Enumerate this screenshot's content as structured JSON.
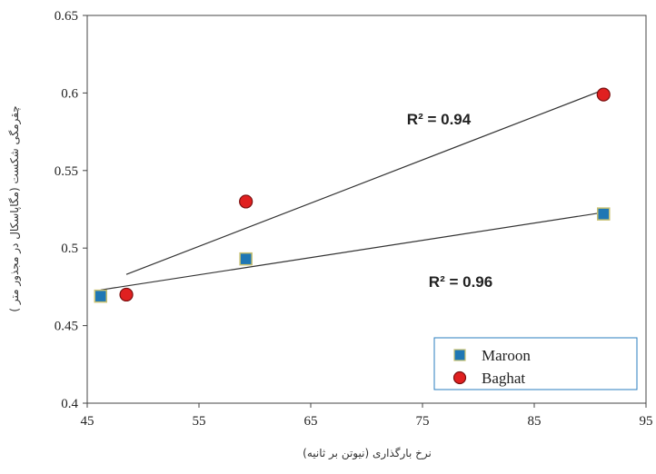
{
  "chart_data": {
    "type": "scatter",
    "xlabel": "نرخ بارگذاری (نیوتن بر ثانیه)",
    "ylabel": "چقرمگی شکست (مگاپاسکال در مجذور متر )",
    "xlim": [
      45,
      95
    ],
    "ylim": [
      0.4,
      0.65
    ],
    "x_ticks": [
      "45",
      "55",
      "65",
      "75",
      "85",
      "95"
    ],
    "y_ticks": [
      "0.4",
      "0.45",
      "0.5",
      "0.55",
      "0.6",
      "0.65"
    ],
    "grid": false,
    "legend_position": "bottom-right",
    "series": [
      {
        "name": "Maroon",
        "marker": "square",
        "color": "#1f77b4",
        "x": [
          46.2,
          59.2,
          91.2
        ],
        "y": [
          0.469,
          0.493,
          0.522
        ],
        "trendline": {
          "x": [
            46.2,
            91.2
          ],
          "y": [
            0.473,
            0.523
          ]
        },
        "r2_label": "R² = 0.96"
      },
      {
        "name": "Baghat",
        "marker": "circle",
        "color": "#e02020",
        "x": [
          48.5,
          59.2,
          91.2
        ],
        "y": [
          0.47,
          0.53,
          0.599
        ],
        "trendline": {
          "x": [
            48.5,
            91.2
          ],
          "y": [
            0.483,
            0.602
          ]
        },
        "r2_label": "R² = 0.94"
      }
    ]
  }
}
